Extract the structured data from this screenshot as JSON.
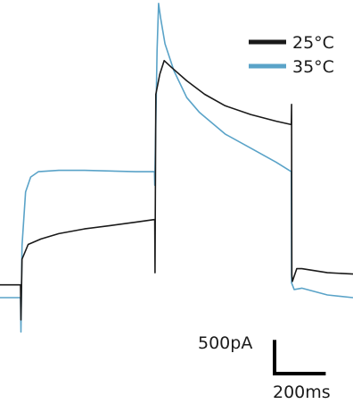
{
  "chart_data": {
    "type": "line",
    "x_unit": "ms",
    "y_unit": "pA",
    "xlim": [
      -80,
      1300
    ],
    "ylim": [
      -1950,
      4050
    ],
    "legend": {
      "placement": "top-right"
    },
    "grid": false,
    "series": [
      {
        "name": "25°C",
        "color": "#1a1a1a",
        "points": [
          [
            -80,
            -180
          ],
          [
            0,
            -180
          ],
          [
            2,
            -700
          ],
          [
            6,
            200
          ],
          [
            30,
            420
          ],
          [
            80,
            500
          ],
          [
            150,
            580
          ],
          [
            250,
            650
          ],
          [
            350,
            700
          ],
          [
            450,
            750
          ],
          [
            525,
            790
          ],
          [
            526,
            0
          ],
          [
            529,
            2650
          ],
          [
            545,
            2950
          ],
          [
            562,
            3150
          ],
          [
            590,
            3050
          ],
          [
            650,
            2850
          ],
          [
            720,
            2650
          ],
          [
            800,
            2480
          ],
          [
            900,
            2350
          ],
          [
            1000,
            2250
          ],
          [
            1059,
            2200
          ],
          [
            1060,
            2500
          ],
          [
            1061,
            -30
          ],
          [
            1063,
            -130
          ],
          [
            1080,
            60
          ],
          [
            1100,
            60
          ],
          [
            1200,
            0
          ],
          [
            1300,
            -20
          ]
        ]
      },
      {
        "name": "35°C",
        "color": "#5aa3c8",
        "points": [
          [
            -80,
            -370
          ],
          [
            0,
            -370
          ],
          [
            2,
            -880
          ],
          [
            6,
            400
          ],
          [
            20,
            1200
          ],
          [
            40,
            1420
          ],
          [
            70,
            1500
          ],
          [
            150,
            1520
          ],
          [
            250,
            1520
          ],
          [
            350,
            1510
          ],
          [
            450,
            1500
          ],
          [
            524,
            1500
          ],
          [
            525,
            1300
          ],
          [
            534,
            3300
          ],
          [
            540,
            4000
          ],
          [
            548,
            3780
          ],
          [
            565,
            3400
          ],
          [
            600,
            3000
          ],
          [
            650,
            2600
          ],
          [
            700,
            2380
          ],
          [
            800,
            2060
          ],
          [
            900,
            1850
          ],
          [
            1000,
            1640
          ],
          [
            1059,
            1500
          ],
          [
            1060,
            -150
          ],
          [
            1070,
            -250
          ],
          [
            1100,
            -230
          ],
          [
            1200,
            -330
          ],
          [
            1300,
            -370
          ]
        ]
      }
    ],
    "scale_bar": {
      "current_label": "500pA",
      "time_label": "200ms",
      "current_value": 500,
      "time_value": 200
    }
  }
}
